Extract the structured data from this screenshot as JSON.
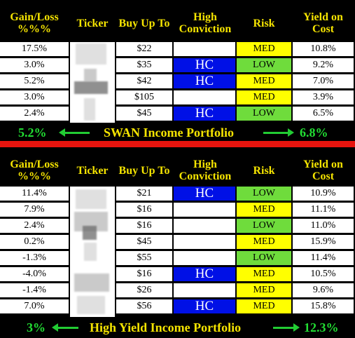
{
  "headers": {
    "gain_loss": "Gain/Loss\n%%%",
    "ticker": "Ticker",
    "buy_up_to": "Buy Up To",
    "high_conviction": "High\nConviction",
    "risk": "Risk",
    "yield_on_cost": "Yield on\nCost"
  },
  "colors": {
    "header_text": "#f5e400",
    "hc_blue": "#0010e6",
    "risk_med": "#ffff00",
    "risk_low": "#6fdc3c",
    "divider_red": "#e8140e",
    "arrow_green": "#22cc33"
  },
  "swan": {
    "rows": [
      {
        "gain": "17.5%",
        "buy": "$22",
        "hc": "",
        "risk": "MED",
        "yield": "10.8%"
      },
      {
        "gain": "3.0%",
        "buy": "$35",
        "hc": "HC",
        "risk": "LOW",
        "yield": "9.2%"
      },
      {
        "gain": "5.2%",
        "buy": "$42",
        "hc": "HC",
        "risk": "MED",
        "yield": "7.0%"
      },
      {
        "gain": "3.0%",
        "buy": "$105",
        "hc": "",
        "risk": "MED",
        "yield": "3.9%"
      },
      {
        "gain": "2.4%",
        "buy": "$45",
        "hc": "HC",
        "risk": "LOW",
        "yield": "6.5%"
      }
    ],
    "footer": {
      "left": "5.2%",
      "title": "SWAN Income Portfolio",
      "right": "6.8%"
    }
  },
  "high_yield": {
    "rows": [
      {
        "gain": "11.4%",
        "buy": "$21",
        "hc": "HC",
        "risk": "LOW",
        "yield": "10.9%"
      },
      {
        "gain": "7.9%",
        "buy": "$16",
        "hc": "",
        "risk": "MED",
        "yield": "11.1%"
      },
      {
        "gain": "2.4%",
        "buy": "$16",
        "hc": "",
        "risk": "LOW",
        "yield": "11.0%"
      },
      {
        "gain": "0.2%",
        "buy": "$45",
        "hc": "",
        "risk": "MED",
        "yield": "15.9%"
      },
      {
        "gain": "-1.3%",
        "buy": "$55",
        "hc": "",
        "risk": "LOW",
        "yield": "11.4%"
      },
      {
        "gain": "-4.0%",
        "buy": "$16",
        "hc": "HC",
        "risk": "MED",
        "yield": "10.5%"
      },
      {
        "gain": "-1.4%",
        "buy": "$26",
        "hc": "",
        "risk": "MED",
        "yield": "9.6%"
      },
      {
        "gain": "7.0%",
        "buy": "$56",
        "hc": "HC",
        "risk": "MED",
        "yield": "15.8%"
      }
    ],
    "footer": {
      "left": "3%",
      "title": "High Yield Income Portfolio",
      "right": "12.3%"
    }
  }
}
